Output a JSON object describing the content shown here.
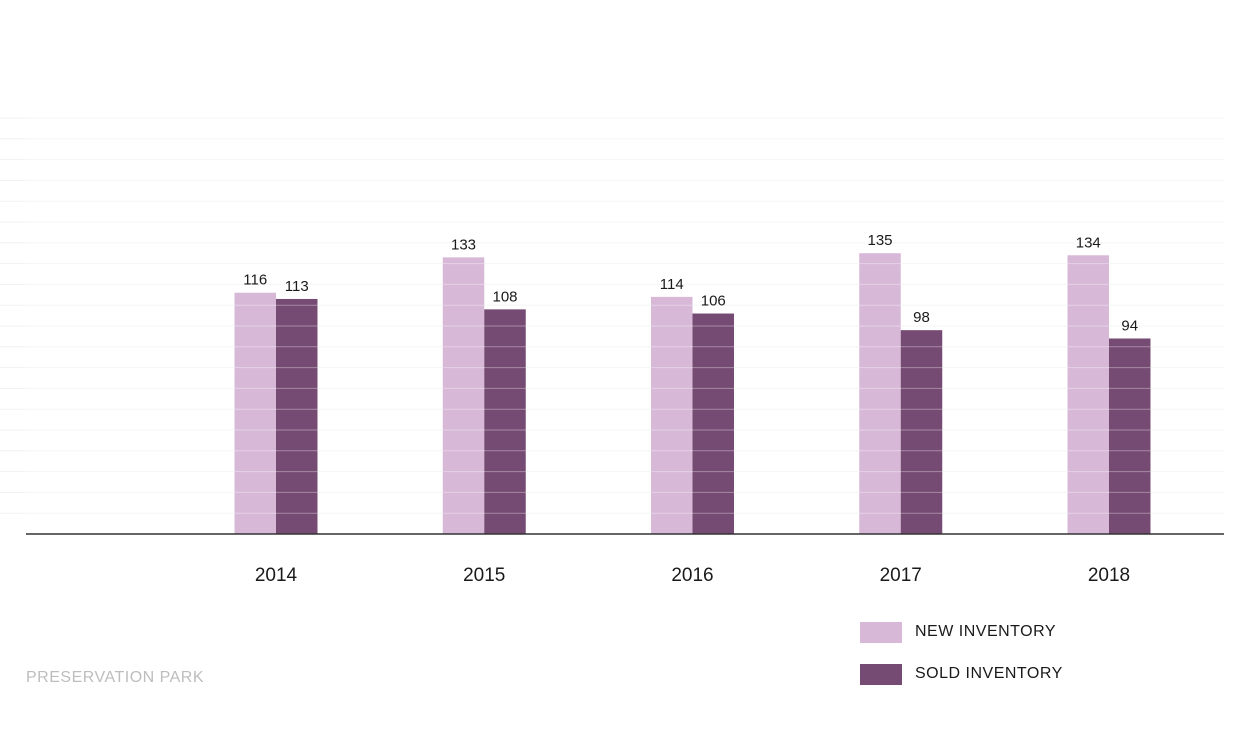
{
  "chart_data": {
    "type": "bar",
    "categories": [
      "2014",
      "2015",
      "2016",
      "2017",
      "2018"
    ],
    "series": [
      {
        "name": "NEW INVENTORY",
        "values": [
          116,
          133,
          114,
          135,
          134
        ],
        "color": "#d7b9d7"
      },
      {
        "name": "SOLD INVENTORY",
        "values": [
          113,
          108,
          106,
          98,
          94
        ],
        "color": "#764b73"
      }
    ],
    "ylim": [
      0,
      200
    ],
    "grid": true,
    "legend_position": "bottom-right",
    "axis_color": "#333333",
    "grid_color": "#f1f1f1"
  },
  "source_text": "PRESERVATION PARK"
}
